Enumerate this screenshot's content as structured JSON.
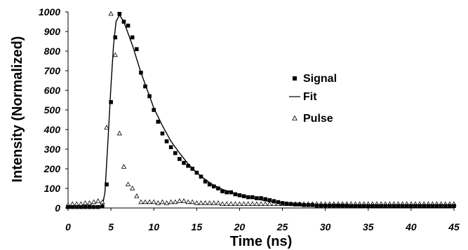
{
  "chart_data": {
    "type": "scatter",
    "xlabel": "Time (ns)",
    "ylabel": "Intensity (Normalized)",
    "xlim": [
      0,
      45
    ],
    "ylim": [
      0,
      1000
    ],
    "xticks": [
      0,
      5,
      10,
      15,
      20,
      25,
      30,
      35,
      40,
      45
    ],
    "yticks": [
      0,
      100,
      200,
      300,
      400,
      500,
      600,
      700,
      800,
      900,
      1000
    ],
    "grid": false,
    "legend_position": "right",
    "series": [
      {
        "name": "Signal",
        "marker": "filled-square",
        "x": [
          0,
          0.5,
          1,
          1.5,
          2,
          2.5,
          3,
          3.5,
          4,
          4.5,
          5,
          5.5,
          6,
          6.5,
          7,
          7.5,
          8,
          8.5,
          9,
          9.5,
          10,
          10.5,
          11,
          11.5,
          12,
          12.5,
          13,
          13.5,
          14,
          14.5,
          15,
          15.5,
          16,
          16.5,
          17,
          17.5,
          18,
          18.5,
          19,
          19.5,
          20,
          20.5,
          21,
          21.5,
          22,
          22.5,
          23,
          23.5,
          24,
          24.5,
          25,
          25.5,
          26,
          26.5,
          27,
          27.5,
          28,
          28.5,
          29,
          29.5,
          30,
          30.5,
          31,
          31.5,
          32,
          32.5,
          33,
          33.5,
          34,
          34.5,
          35,
          35.5,
          36,
          36.5,
          37,
          37.5,
          38,
          38.5,
          39,
          39.5,
          40,
          40.5,
          41,
          41.5,
          42,
          42.5,
          43,
          43.5,
          44,
          44.5,
          45
        ],
        "y": [
          5,
          5,
          5,
          5,
          5,
          5,
          5,
          5,
          8,
          120,
          540,
          870,
          990,
          950,
          930,
          870,
          810,
          690,
          620,
          570,
          500,
          440,
          380,
          340,
          310,
          280,
          250,
          230,
          215,
          200,
          180,
          160,
          135,
          120,
          110,
          100,
          85,
          80,
          80,
          70,
          65,
          60,
          55,
          55,
          50,
          50,
          45,
          40,
          35,
          30,
          25,
          22,
          20,
          18,
          18,
          15,
          15,
          15,
          12,
          12,
          12,
          12,
          12,
          12,
          12,
          12,
          10,
          10,
          10,
          10,
          10,
          10,
          10,
          10,
          10,
          10,
          10,
          10,
          10,
          10,
          10,
          10,
          10,
          10,
          10,
          10,
          10,
          10,
          10,
          10,
          10
        ]
      },
      {
        "name": "Fit",
        "marker": "line",
        "x": [
          0,
          1,
          2,
          3,
          3.5,
          4,
          4.3,
          4.6,
          5,
          5.3,
          5.6,
          6,
          6.5,
          7,
          7.5,
          8,
          8.5,
          9,
          9.5,
          10,
          11,
          12,
          13,
          14,
          15,
          16,
          17,
          18,
          19,
          20,
          22,
          24,
          26,
          28,
          30,
          32,
          35,
          38,
          41,
          45
        ],
        "y": [
          5,
          5,
          5,
          5,
          5,
          10,
          80,
          300,
          620,
          830,
          950,
          985,
          950,
          890,
          830,
          760,
          690,
          630,
          570,
          510,
          420,
          340,
          280,
          225,
          180,
          145,
          115,
          95,
          80,
          65,
          45,
          30,
          20,
          14,
          10,
          8,
          5,
          4,
          3,
          3
        ]
      },
      {
        "name": "Pulse",
        "marker": "open-triangle",
        "x": [
          0,
          0.5,
          1,
          1.5,
          2,
          2.5,
          3,
          3.5,
          4,
          4.5,
          5,
          5.5,
          6,
          6.5,
          7,
          7.5,
          8,
          8.5,
          9,
          9.5,
          10,
          10.5,
          11,
          11.5,
          12,
          12.5,
          13,
          13.5,
          14,
          14.5,
          15,
          15.5,
          16,
          16.5,
          17,
          17.5,
          18,
          18.5,
          19,
          19.5,
          20,
          20.5,
          21,
          21.5,
          22,
          22.5,
          23,
          23.5,
          24,
          24.5,
          25,
          25.5,
          26,
          26.5,
          27,
          27.5,
          28,
          28.5,
          29,
          29.5,
          30,
          30.5,
          31,
          31.5,
          32,
          32.5,
          33,
          33.5,
          34,
          34.5,
          35,
          35.5,
          36,
          36.5,
          37,
          37.5,
          38,
          38.5,
          39,
          39.5,
          40,
          40.5,
          41,
          41.5,
          42,
          42.5,
          43,
          43.5,
          44,
          44.5,
          45
        ],
        "y": [
          15,
          20,
          20,
          20,
          25,
          25,
          30,
          35,
          30,
          410,
          990,
          780,
          380,
          210,
          120,
          100,
          60,
          30,
          30,
          30,
          30,
          25,
          30,
          25,
          30,
          30,
          35,
          35,
          30,
          30,
          25,
          25,
          25,
          25,
          25,
          25,
          20,
          20,
          20,
          20,
          20,
          20,
          20,
          20,
          20,
          20,
          20,
          20,
          20,
          20,
          20,
          20,
          20,
          20,
          20,
          20,
          20,
          20,
          20,
          20,
          20,
          20,
          20,
          20,
          20,
          20,
          20,
          20,
          20,
          20,
          20,
          20,
          20,
          20,
          20,
          20,
          20,
          20,
          20,
          20,
          20,
          20,
          20,
          20,
          20,
          20,
          20,
          20,
          20,
          20,
          20
        ]
      }
    ]
  }
}
